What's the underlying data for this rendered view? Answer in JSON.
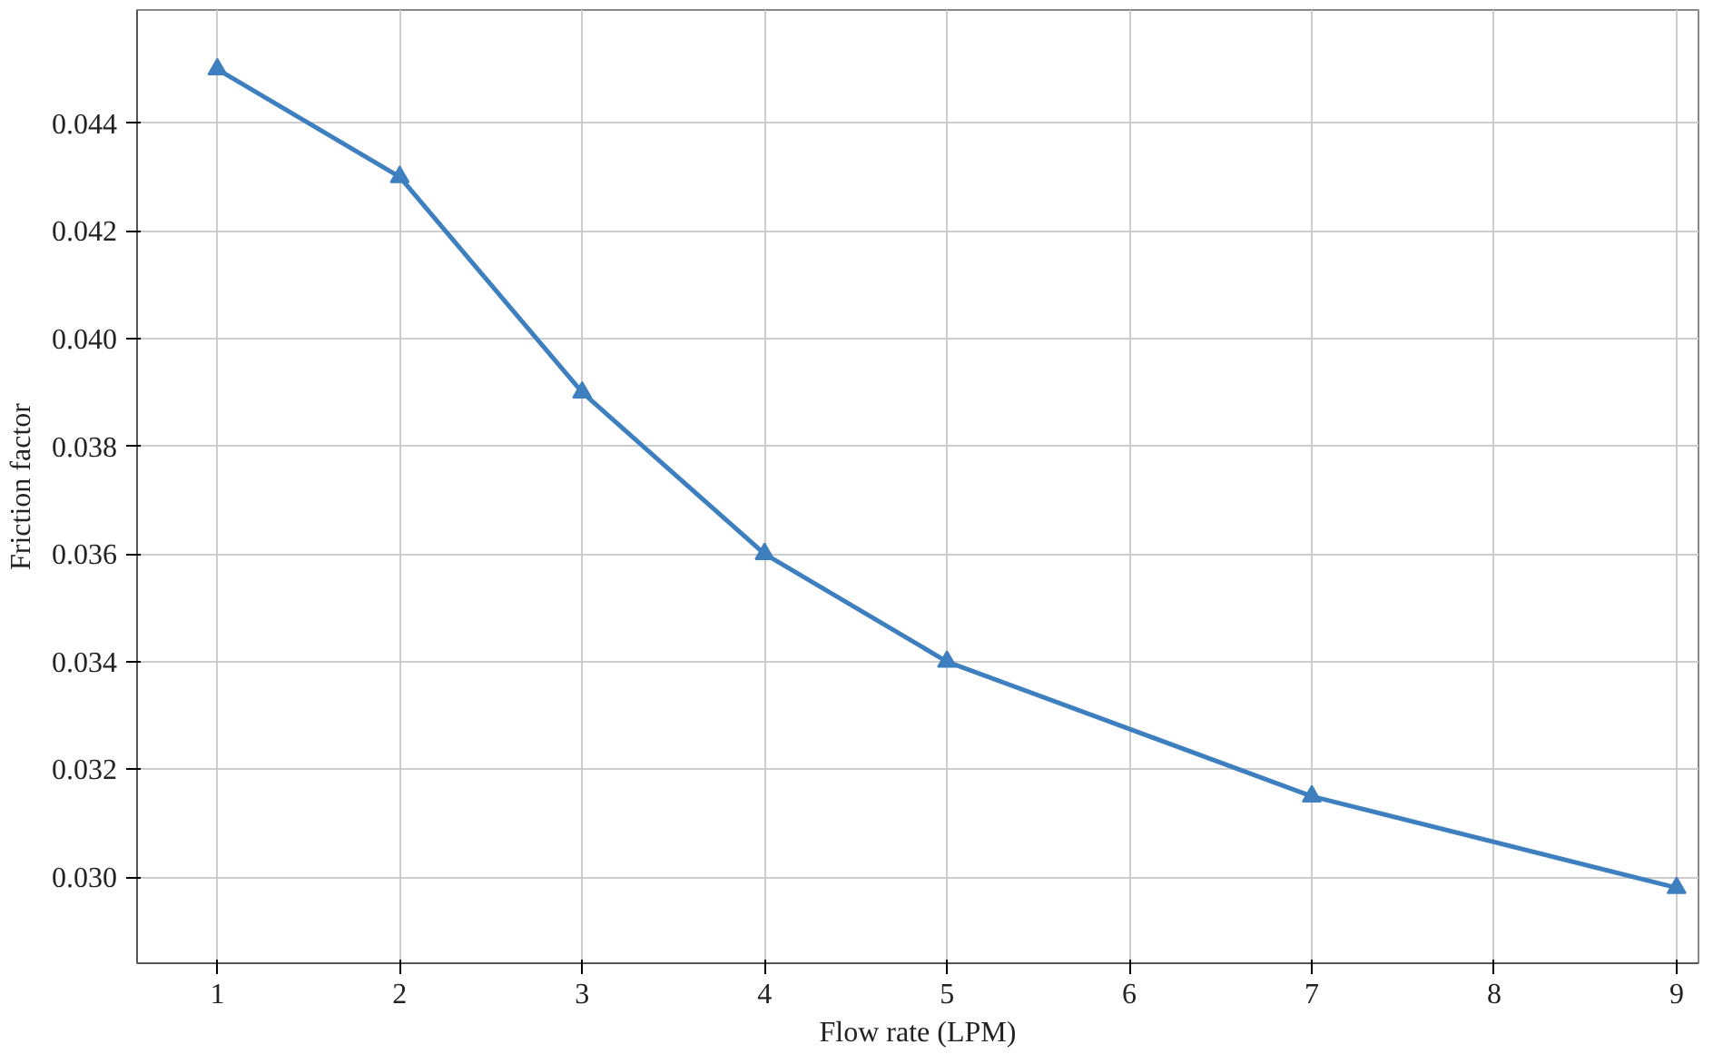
{
  "chart_data": {
    "type": "line",
    "xlabel": "Flow rate (LPM)",
    "ylabel": "Friction factor",
    "x": [
      1,
      2,
      3,
      4,
      5,
      7,
      9
    ],
    "series": [
      {
        "color": "#3d7fbf",
        "values": [
          0.045,
          0.043,
          0.039,
          0.036,
          0.034,
          0.0315,
          0.0298
        ]
      }
    ],
    "xlim": [
      0.56,
      9.12
    ],
    "ylim": [
      0.0284,
      0.0461
    ],
    "xticks": [
      1,
      2,
      3,
      4,
      5,
      6,
      7,
      8,
      9
    ],
    "yticks": [
      {
        "value": 0.03,
        "label": "0.030"
      },
      {
        "value": 0.032,
        "label": "0.032"
      },
      {
        "value": 0.034,
        "label": "0.034"
      },
      {
        "value": 0.036,
        "label": "0.036"
      },
      {
        "value": 0.038,
        "label": "0.038"
      },
      {
        "value": 0.04,
        "label": "0.040"
      },
      {
        "value": 0.042,
        "label": "0.042"
      },
      {
        "value": 0.044,
        "label": "0.044"
      }
    ],
    "grid": true,
    "marker": "triangle",
    "line_style": "solid"
  }
}
